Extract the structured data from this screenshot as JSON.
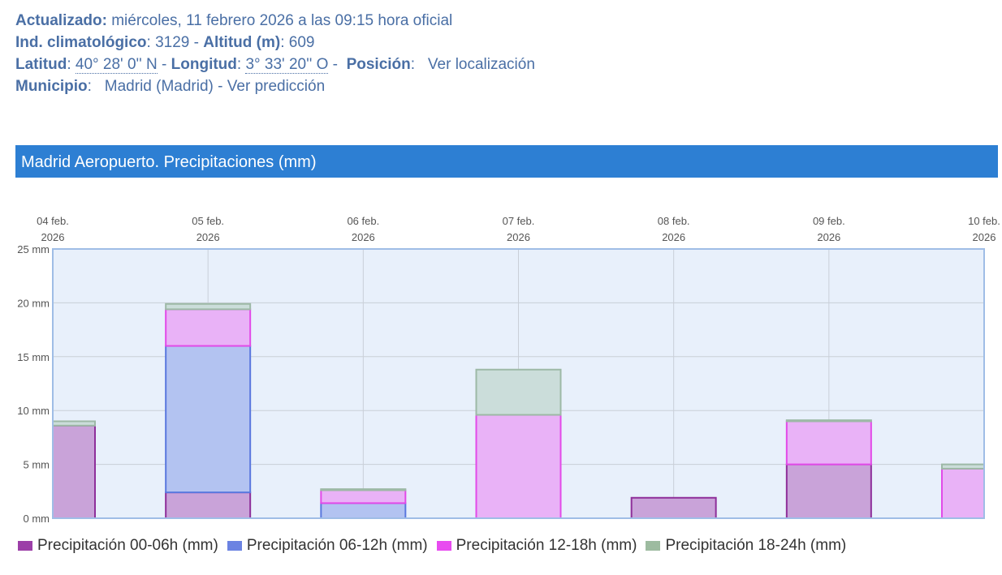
{
  "header": {
    "updated_label": "Actualizado:",
    "updated_value": "miércoles, 11 febrero 2026 a las 09:15 hora oficial",
    "climate_label": "Ind. climatológico",
    "climate_value": ": 3129 - ",
    "altitude_label": "Altitud (m)",
    "altitude_value": ": 609",
    "lat_label": "Latitud",
    "lat_value": "40° 28' 0'' N",
    "lon_label": "Longitud",
    "lon_value": "3° 33' 20'' O",
    "position_label": "Posición",
    "position_link": "Ver localización",
    "municipality_label": "Municipio",
    "municipality_value": "Madrid (Madrid)",
    "forecast_link": "Ver predicción"
  },
  "panel_title": "Madrid Aeropuerto. Precipitaciones (mm)",
  "chart_data": {
    "type": "bar",
    "stacked": true,
    "categories": [
      "04 feb.\n2026",
      "05 feb.\n2026",
      "06 feb.\n2026",
      "07 feb.\n2026",
      "08 feb.\n2026",
      "09 feb.\n2026",
      "10 feb.\n2026"
    ],
    "category_lines": [
      [
        "04 feb.",
        "2026"
      ],
      [
        "05 feb.",
        "2026"
      ],
      [
        "06 feb.",
        "2026"
      ],
      [
        "07 feb.",
        "2026"
      ],
      [
        "08 feb.",
        "2026"
      ],
      [
        "09 feb.",
        "2026"
      ],
      [
        "10 feb.",
        "2026"
      ]
    ],
    "series": [
      {
        "name": "Precipitación 00-06h (mm)",
        "values": [
          8.6,
          2.4,
          0.0,
          0.0,
          1.9,
          5.0,
          0.0
        ],
        "fill": "#c9a3d9",
        "stroke": "#8e2f9a",
        "swatch": "#9c3fa8"
      },
      {
        "name": "Precipitación 06-12h (mm)",
        "values": [
          0.0,
          13.6,
          1.4,
          0.0,
          0.0,
          0.0,
          0.0
        ],
        "fill": "#b3c3f1",
        "stroke": "#5a78de",
        "swatch": "#6b83e2"
      },
      {
        "name": "Precipitación 12-18h (mm)",
        "values": [
          0.0,
          3.4,
          1.2,
          9.6,
          0.0,
          4.0,
          4.6
        ],
        "fill": "#e9b2f7",
        "stroke": "#e24ae8",
        "swatch": "#e84bf0"
      },
      {
        "name": "Precipitación 18-24h (mm)",
        "values": [
          0.4,
          0.5,
          0.1,
          4.2,
          0.0,
          0.1,
          0.4
        ],
        "fill": "#cbddda",
        "stroke": "#9db9a6",
        "swatch": "#9dbba0"
      }
    ],
    "yticks": [
      "0 mm",
      "5 mm",
      "10 mm",
      "15 mm",
      "20 mm",
      "25 mm"
    ],
    "ylim": [
      0,
      25
    ],
    "grid": true,
    "legend_position": "bottom-left",
    "plot_background": "#e8f0fb"
  }
}
